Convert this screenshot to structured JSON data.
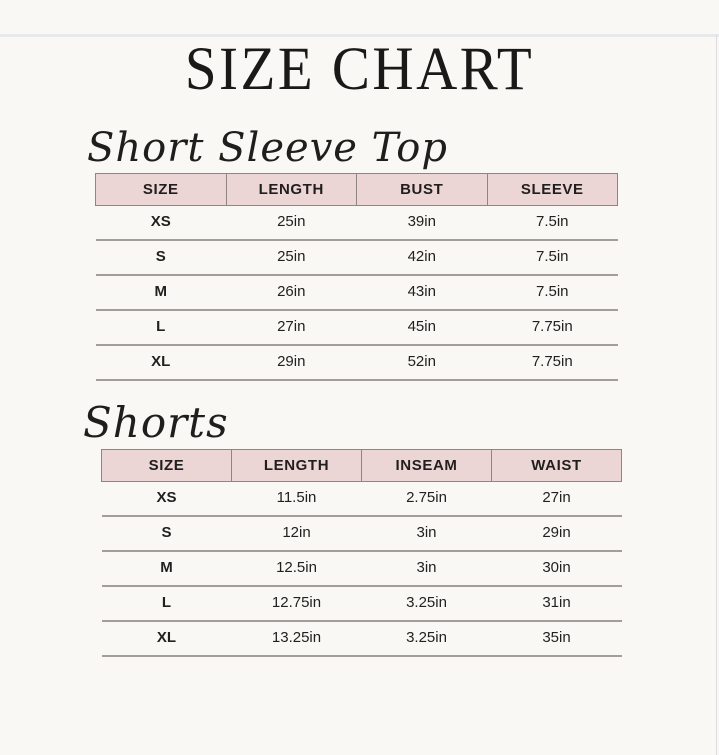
{
  "page": {
    "title": "SIZE CHART"
  },
  "colors": {
    "background": "#faf8f4",
    "header_fill": "#ecd5d5",
    "header_border": "#8f8584",
    "row_divider": "#a49e9b",
    "text": "#1d1b1a"
  },
  "tables": [
    {
      "heading": "Short Sleeve Top",
      "columns": [
        "SIZE",
        "LENGTH",
        "BUST",
        "SLEEVE"
      ],
      "rows": [
        [
          "XS",
          "25in",
          "39in",
          "7.5in"
        ],
        [
          "S",
          "25in",
          "42in",
          "7.5in"
        ],
        [
          "M",
          "26in",
          "43in",
          "7.5in"
        ],
        [
          "L",
          "27in",
          "45in",
          "7.75in"
        ],
        [
          "XL",
          "29in",
          "52in",
          "7.75in"
        ]
      ]
    },
    {
      "heading": "Shorts",
      "columns": [
        "SIZE",
        "LENGTH",
        "INSEAM",
        "WAIST"
      ],
      "rows": [
        [
          "XS",
          "11.5in",
          "2.75in",
          "27in"
        ],
        [
          "S",
          "12in",
          "3in",
          "29in"
        ],
        [
          "M",
          "12.5in",
          "3in",
          "30in"
        ],
        [
          "L",
          "12.75in",
          "3.25in",
          "31in"
        ],
        [
          "XL",
          "13.25in",
          "3.25in",
          "35in"
        ]
      ]
    }
  ]
}
